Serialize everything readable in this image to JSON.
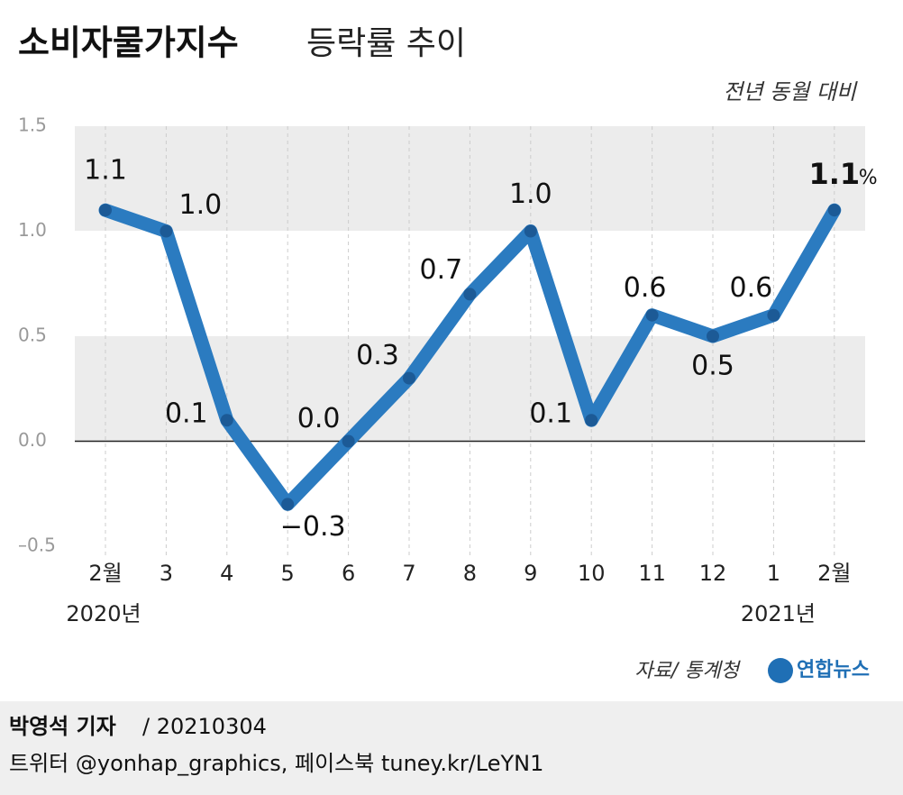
{
  "chart_data": {
    "type": "line",
    "title": "소비자물가지수",
    "title_rest": "등락률 추이",
    "subtitle": "전년 동월 대비",
    "categories": [
      "2월",
      "3",
      "4",
      "5",
      "6",
      "7",
      "8",
      "9",
      "10",
      "11",
      "12",
      "1",
      "2월"
    ],
    "year_labels": [
      "2020년",
      "2021년"
    ],
    "series": [
      {
        "name": "소비자물가지수",
        "color": "#2b7bc0",
        "values": [
          1.1,
          1.0,
          0.1,
          -0.3,
          0.0,
          0.3,
          0.7,
          1.0,
          0.1,
          0.6,
          0.5,
          0.6,
          1.1
        ],
        "value_labels": [
          "1.1",
          "1.0",
          "0.1",
          "−0.3",
          "0.0",
          "0.3",
          "0.7",
          "1.0",
          "0.1",
          "0.6",
          "0.5",
          "0.6",
          "1.1"
        ]
      }
    ],
    "unit": "%",
    "ylim": [
      -0.5,
      1.5
    ],
    "yticks": [
      {
        "value": -0.5,
        "label": "–0.5"
      },
      {
        "value": 0,
        "label": "0.0"
      },
      0.5,
      {
        "value": 1,
        "label": "1.0"
      },
      1.5
    ],
    "source": "자료/ 통계청",
    "logo": "연합뉴스",
    "reporter": "박영석 기자",
    "date": "/ 20210304",
    "social": "트위터 @yonhap_graphics, 페이스북 tuney.kr/LeYN1"
  }
}
